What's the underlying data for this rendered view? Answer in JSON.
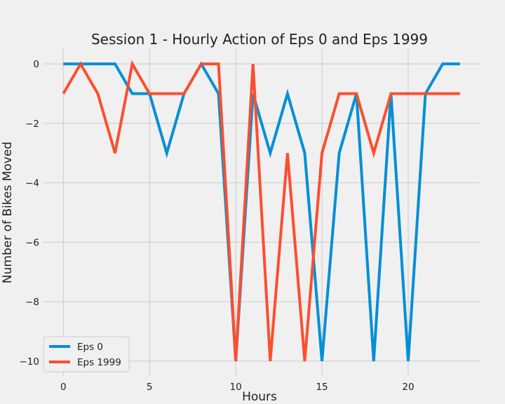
{
  "chart_data": {
    "type": "line",
    "title": "Session 1 - Hourly Action of Eps 0 and Eps 1999",
    "xlabel": "Hours",
    "ylabel": "Number of Bikes Moved",
    "xlim": [
      -1.15,
      24.15
    ],
    "ylim": [
      -10.5,
      0.5
    ],
    "xticks": [
      0,
      5,
      10,
      15,
      20
    ],
    "yticks": [
      0,
      -2,
      -4,
      -6,
      -8,
      -10
    ],
    "xtick_labels": [
      "0",
      "5",
      "10",
      "15",
      "20"
    ],
    "ytick_labels": [
      "0",
      "−2",
      "−4",
      "−6",
      "−8",
      "−10"
    ],
    "grid": true,
    "legend_position": "lower-left",
    "x": [
      0,
      1,
      2,
      3,
      4,
      5,
      6,
      7,
      8,
      9,
      10,
      11,
      12,
      13,
      14,
      15,
      16,
      17,
      18,
      19,
      20,
      21,
      22,
      23
    ],
    "series": [
      {
        "name": "Eps 0",
        "color": "#008fd5",
        "values": [
          0,
          0,
          0,
          0,
          -1,
          -1,
          -3,
          -1,
          0,
          -1,
          -10,
          -1,
          -3,
          -1,
          -3,
          -10,
          -3,
          -1,
          -10,
          -1,
          -10,
          -1,
          0,
          0
        ]
      },
      {
        "name": "Eps 1999",
        "color": "#fc4f30",
        "values": [
          -1,
          0,
          -1,
          -3,
          0,
          -1,
          -1,
          -1,
          0,
          0,
          -10,
          0,
          -10,
          -3,
          -10,
          -3,
          -1,
          -1,
          -3,
          -1,
          -1,
          -1,
          -1,
          -1
        ]
      }
    ]
  }
}
